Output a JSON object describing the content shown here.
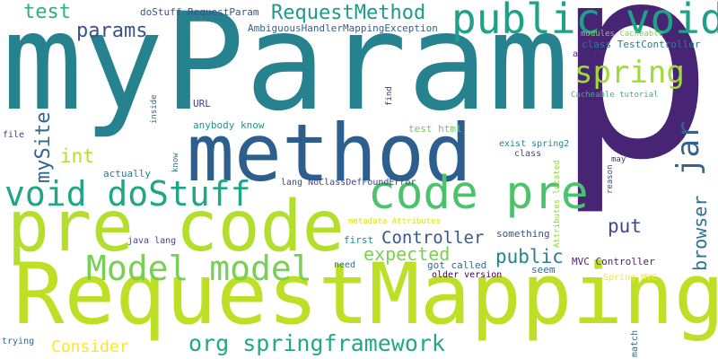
{
  "cloud": {
    "words": [
      {
        "text": "myParam",
        "color": "#26828e"
      },
      {
        "text": "p",
        "color": "#482475"
      },
      {
        "text": "RequestMapping",
        "color": "#bddf26"
      },
      {
        "text": "method",
        "color": "#2c5f8d"
      },
      {
        "text": "pre code",
        "color": "#b4de2c"
      },
      {
        "text": "public void",
        "color": "#1fa187"
      },
      {
        "text": "code pre",
        "color": "#4cc26c"
      },
      {
        "text": "void doStuff",
        "color": "#21a685"
      },
      {
        "text": "Model model",
        "color": "#75d054"
      },
      {
        "text": "spring",
        "color": "#a0da39"
      },
      {
        "text": "jar",
        "color": "#33638d"
      },
      {
        "text": "org springframework",
        "color": "#22a884"
      },
      {
        "text": "RequestMethod",
        "color": "#1e9b8a"
      },
      {
        "text": "params",
        "color": "#3b528b"
      },
      {
        "text": "test",
        "color": "#2db27d"
      },
      {
        "text": "mySite",
        "color": "#31688e"
      },
      {
        "text": "expected",
        "color": "#7ad151"
      },
      {
        "text": "Controller",
        "color": "#39568c"
      },
      {
        "text": "public",
        "color": "#26828e"
      },
      {
        "text": "browser",
        "color": "#2c728e"
      },
      {
        "text": "put",
        "color": "#3e4989"
      },
      {
        "text": "int",
        "color": "#b5de2b"
      },
      {
        "text": "Consider",
        "color": "#fde725"
      },
      {
        "text": "doStuff RequestParam",
        "color": "#3b528b"
      },
      {
        "text": "AmbiguousHandlerMappingException",
        "color": "#355f8d"
      },
      {
        "text": "class TestController",
        "color": "#287d8e"
      },
      {
        "text": "modules Cacheable",
        "color": "#7fd34e"
      },
      {
        "text": "aop M1",
        "color": "#472c7a"
      },
      {
        "text": "Cacheable tutorial",
        "color": "#35b779"
      },
      {
        "text": "URL",
        "color": "#433e85"
      },
      {
        "text": "anybody know",
        "color": "#1f968b"
      },
      {
        "text": "test html",
        "color": "#6ccd5a"
      },
      {
        "text": "exist spring2",
        "color": "#25858e"
      },
      {
        "text": "class",
        "color": "#3f4788"
      },
      {
        "text": "actually",
        "color": "#2a768e"
      },
      {
        "text": "lang NoClassDefFoundError",
        "color": "#414487"
      },
      {
        "text": "metadata Attributes",
        "color": "#d8e219"
      },
      {
        "text": "something",
        "color": "#3c4f8a"
      },
      {
        "text": "first",
        "color": "#23898e"
      },
      {
        "text": "java lang",
        "color": "#404688"
      },
      {
        "text": "got called",
        "color": "#2e6e8e"
      },
      {
        "text": "older version",
        "color": "#440154"
      },
      {
        "text": "seem",
        "color": "#31678e"
      },
      {
        "text": "need",
        "color": "#2d708e"
      },
      {
        "text": "MVC Controller",
        "color": "#481f70"
      },
      {
        "text": "Spring MVC",
        "color": "#fde725"
      },
      {
        "text": "file",
        "color": "#414487"
      },
      {
        "text": "trying",
        "color": "#2f6b8e"
      },
      {
        "text": "Attributes located",
        "color": "#8fd744"
      },
      {
        "text": "reason",
        "color": "#3e4a89"
      },
      {
        "text": "may",
        "color": "#46327e"
      },
      {
        "text": "match",
        "color": "#2d718e"
      },
      {
        "text": "inside",
        "color": "#2e6f8e"
      },
      {
        "text": "know",
        "color": "#2a788e"
      },
      {
        "text": "find",
        "color": "#472d7b"
      }
    ]
  }
}
